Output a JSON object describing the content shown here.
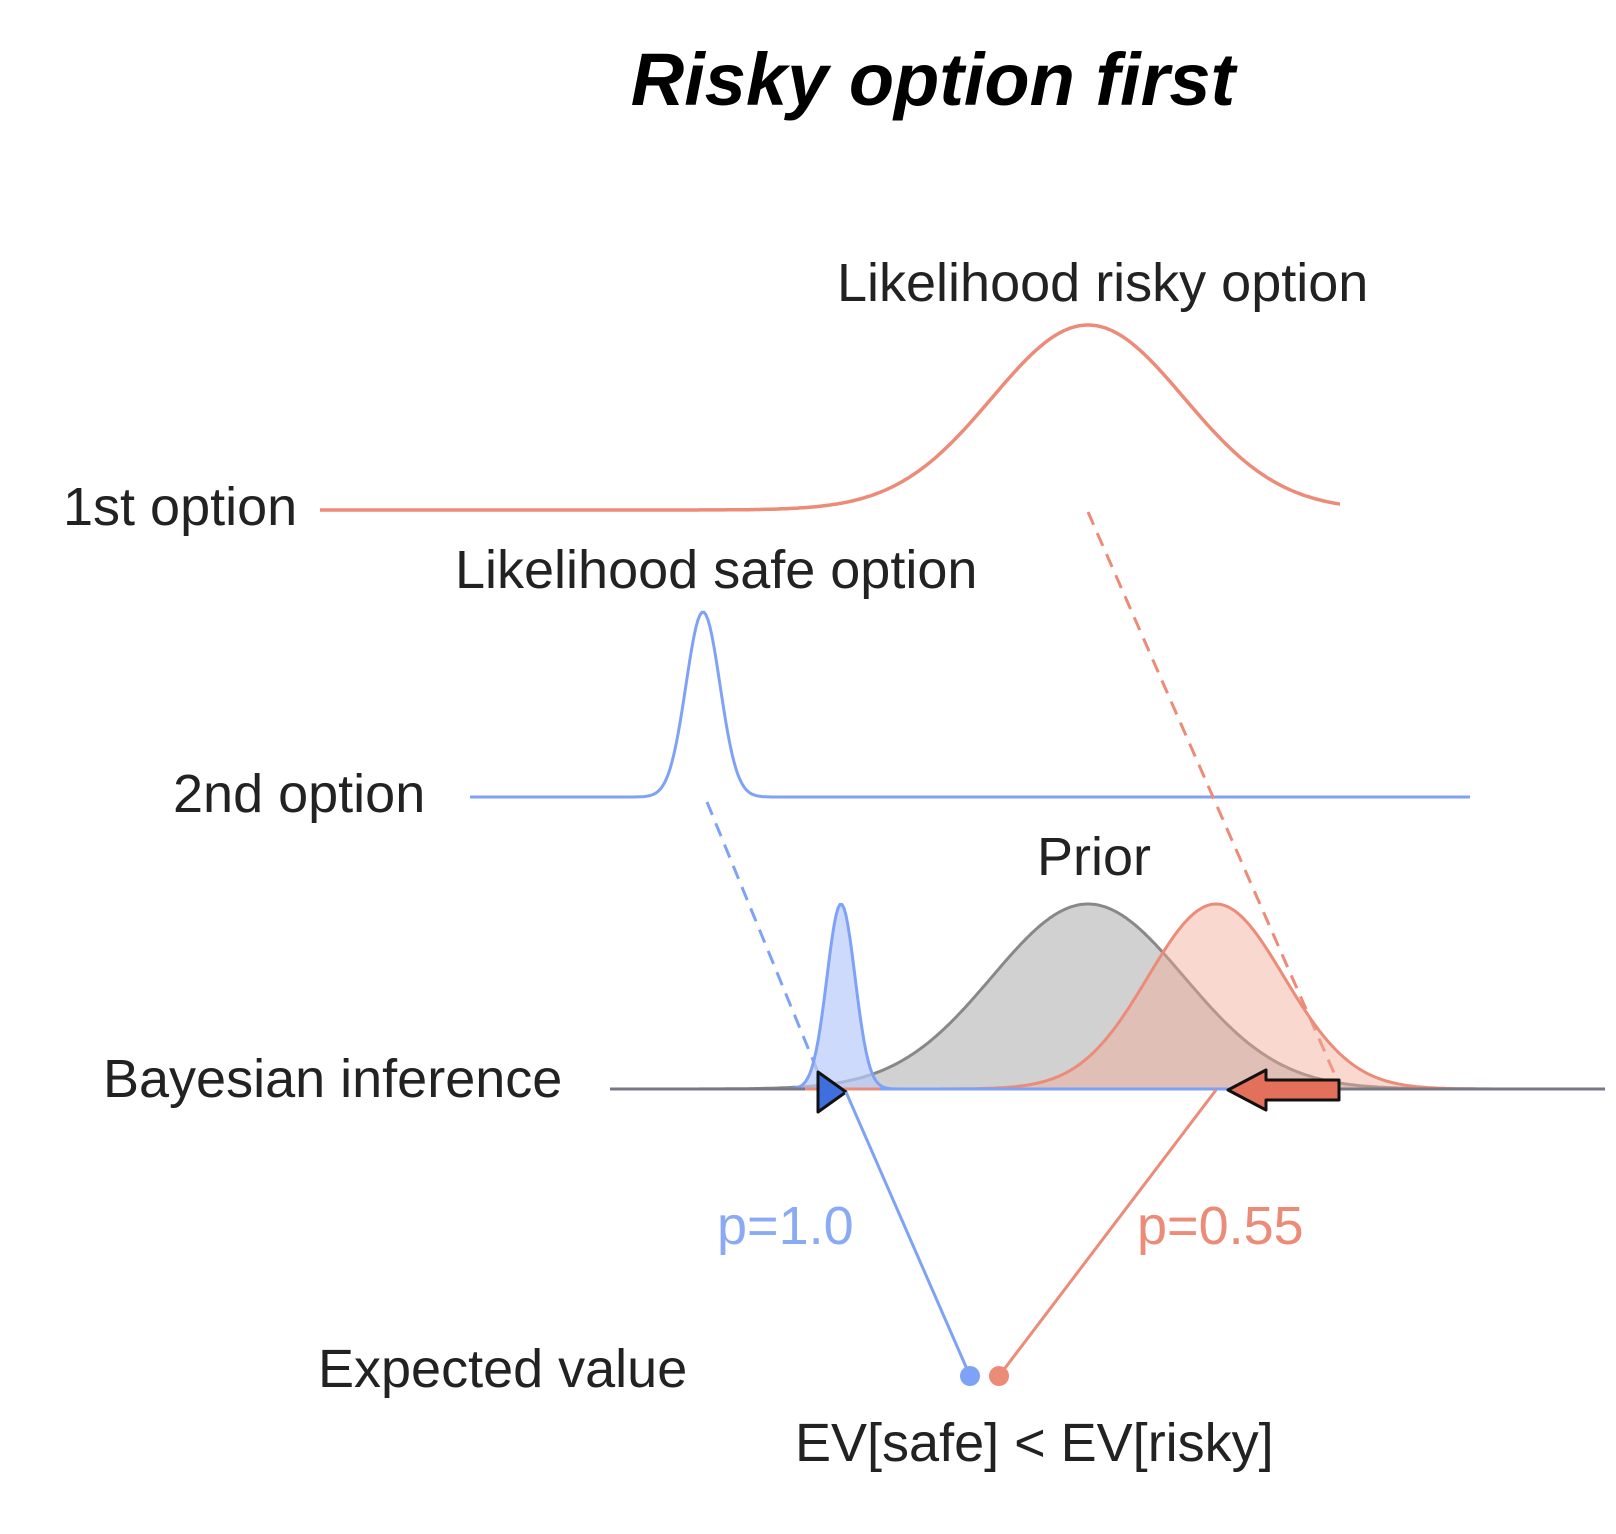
{
  "title": "Risky option first",
  "row_labels": {
    "first": "1st option",
    "second": "2nd option",
    "inference": "Bayesian inference",
    "expected": "Expected value"
  },
  "curve_labels": {
    "risky_likelihood": "Likelihood risky option",
    "safe_likelihood": "Likelihood safe option",
    "prior": "Prior"
  },
  "probabilities": {
    "safe": "p=1.0",
    "risky": "p=0.55"
  },
  "comparison": "EV[safe] < EV[risky]",
  "colors": {
    "risky": "#ec8b77",
    "safe": "#7ea2f5",
    "prior": "#888888",
    "risky_fill": "#f7c7bb",
    "safe_fill": "#cdd9fb",
    "prior_fill": "#d1d1d1"
  }
}
